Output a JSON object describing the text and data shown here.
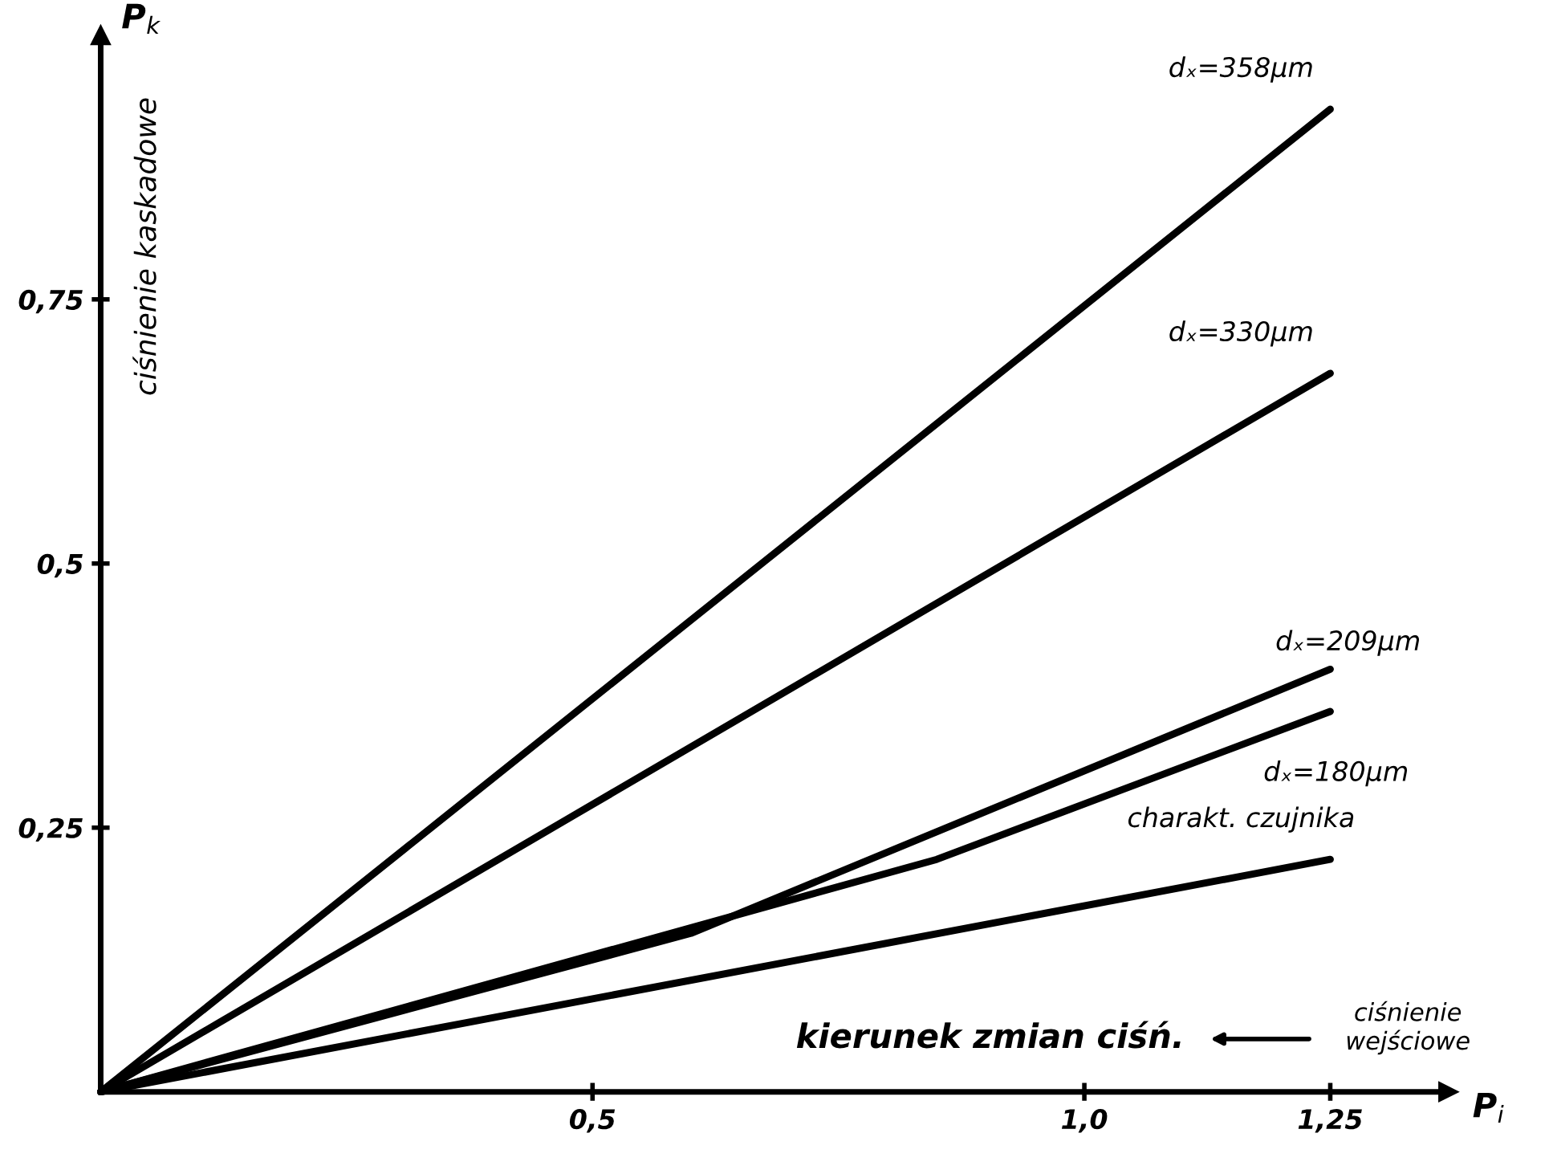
{
  "chart_data": {
    "type": "line",
    "xlabel": "P$_{i}$",
    "ylabel": "P$_{k}$",
    "annotations": [
      "ciśnienie kaskadowe",
      "kierunek zmian ciśń.",
      "ciśnienie wejściowe"
    ],
    "series": [
      {
        "name": "dₓ=358μm",
        "color": "#000000",
        "x": [
          0,
          1.25
        ],
        "values": [
          0,
          0.93
        ]
      },
      {
        "name": "dₓ=330μm",
        "color": "#000000",
        "x": [
          0,
          1.25
        ],
        "values": [
          0,
          0.68
        ]
      },
      {
        "name": "dₓ=209μm",
        "color": "#000000",
        "x": [
          0,
          0.6,
          1.25
        ],
        "values": [
          0,
          0.15,
          0.4
        ]
      },
      {
        "name": "dₓ=180μm",
        "color": "#000000",
        "x": [
          0,
          0.85,
          1.25
        ],
        "values": [
          0,
          0.22,
          0.36
        ]
      },
      {
        "name": "charakt. czujnika",
        "color": "#000000",
        "x": [
          0,
          1.25
        ],
        "values": [
          0,
          0.22
        ]
      }
    ],
    "xlim": [
      0,
      1.37
    ],
    "ylim": [
      0,
      1.0
    ],
    "xticks": [
      {
        "value": 0.5,
        "label": "0,5"
      },
      {
        "value": 1.0,
        "label": "1,0"
      },
      {
        "value": 1.25,
        "label": "1,25"
      }
    ],
    "yticks": [
      {
        "value": 0.25,
        "label": "0,25"
      },
      {
        "value": 0.5,
        "label": "0,5"
      },
      {
        "value": 0.75,
        "label": "0,75"
      }
    ],
    "grid": false,
    "legend": false,
    "marker": "none",
    "line_style": "solid"
  }
}
